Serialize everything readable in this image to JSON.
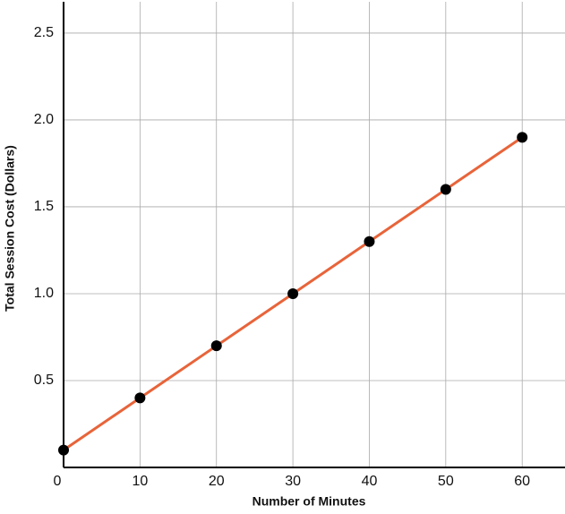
{
  "chart_data": {
    "type": "line",
    "x_label": "Number of Minutes",
    "y_label": "Total Session Cost (Dollars)",
    "x": [
      0,
      10,
      20,
      30,
      40,
      50,
      60
    ],
    "series": [
      {
        "color": "#e8643a",
        "marker_color": "#000000",
        "values": [
          0.1,
          0.4,
          0.7,
          1.0,
          1.3,
          1.6,
          1.9
        ]
      }
    ],
    "xlim": [
      0,
      65.6
    ],
    "ylim": [
      0,
      2.68
    ],
    "xticks": [
      0,
      10,
      20,
      30,
      40,
      50,
      60
    ],
    "yticks": [
      0.5,
      {
        "value": 1,
        "label": "1.0"
      },
      1.5,
      {
        "value": 2,
        "label": "2.0"
      },
      2.5
    ],
    "grid": true
  }
}
